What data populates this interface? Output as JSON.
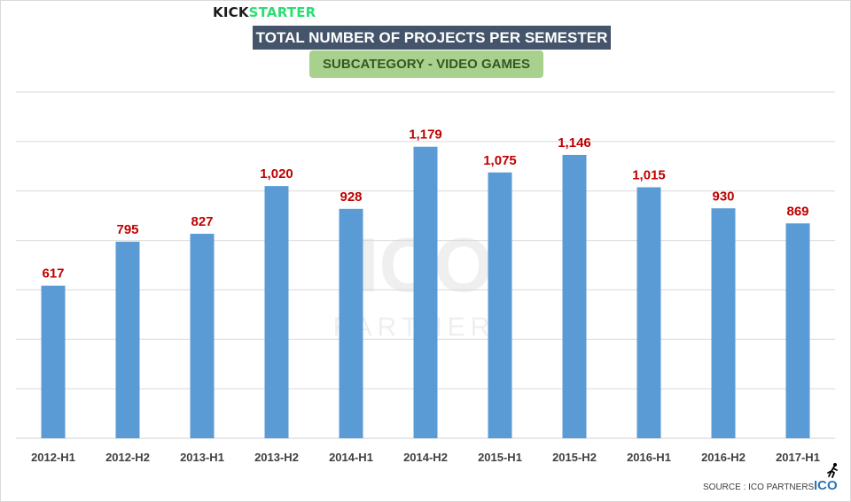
{
  "brand": {
    "kick": "KICK",
    "starter": "STARTER"
  },
  "watermark": {
    "big": "ICO",
    "small": "PARTNERS"
  },
  "footer": {
    "source": "SOURCE : ICO PARTNERS",
    "logo": "ICO"
  },
  "colors": {
    "bar": "#5b9bd5",
    "value_label": "#c00000",
    "grid": "#d9d9d9"
  },
  "chart_data": {
    "type": "bar",
    "title": "TOTAL NUMBER OF PROJECTS PER SEMESTER",
    "subtitle": "SUBCATEGORY - VIDEO GAMES",
    "categories": [
      "2012-H1",
      "2012-H2",
      "2013-H1",
      "2013-H2",
      "2014-H1",
      "2014-H2",
      "2015-H1",
      "2015-H2",
      "2016-H1",
      "2016-H2",
      "2017-H1"
    ],
    "values": [
      617,
      795,
      827,
      1020,
      928,
      1179,
      1075,
      1146,
      1015,
      930,
      869
    ],
    "value_labels": [
      "617",
      "795",
      "827",
      "1,020",
      "928",
      "1,179",
      "1,075",
      "1,146",
      "1,015",
      "930",
      "869"
    ],
    "xlabel": "",
    "ylabel": "",
    "ylim": [
      0,
      1400
    ],
    "grid": true,
    "legend": "none"
  }
}
